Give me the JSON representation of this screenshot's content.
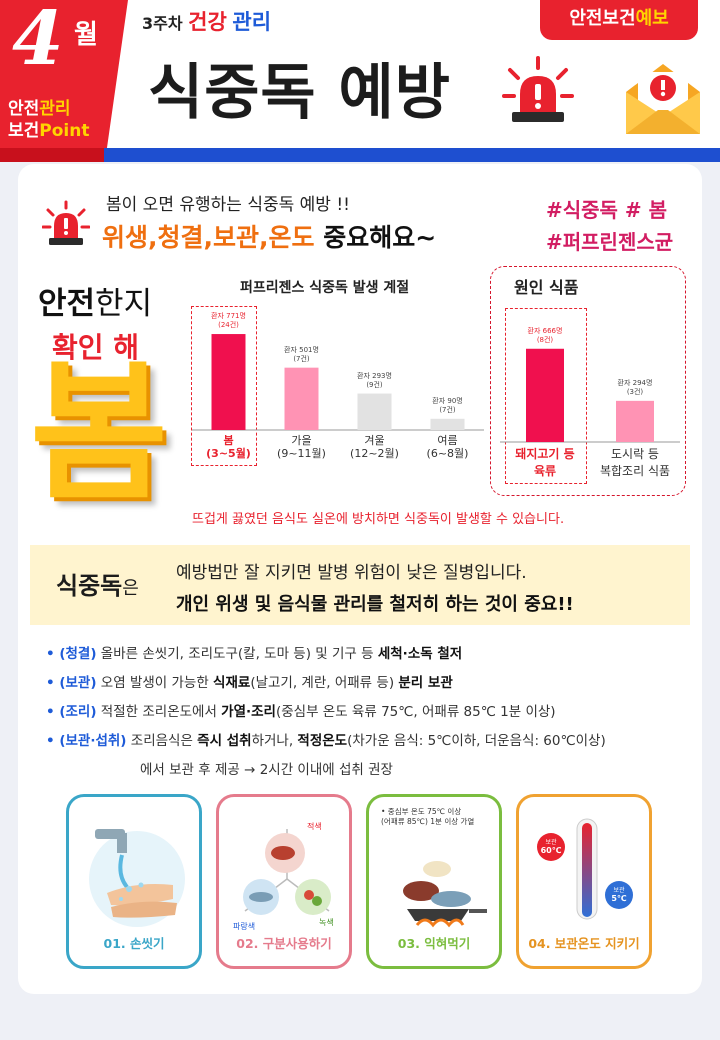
{
  "header": {
    "month_num": "4",
    "month_unit": "월",
    "point_pre": "안전",
    "point_accent1": "관리",
    "point_pre2": "보건",
    "point_accent2": "Point",
    "week": "3주차",
    "week_topic_1": "건강",
    "week_topic_2": "관리",
    "title": "식중독 예방",
    "badge_pre": "안전보건",
    "badge_accent": "예보"
  },
  "intro": {
    "line": "봄이 오면 유행하는 식중독 예방 !!",
    "headline_orange": "위생,청결,보관,온도 ",
    "headline_black": "중요해요~"
  },
  "hashtags": [
    "#식중독 # 봄",
    "#퍼프린젠스균"
  ],
  "slogan": {
    "bold": "안전",
    "normal": "한지",
    "line2": "확인 해",
    "big": "봄"
  },
  "season_chart": {
    "title": "퍼프리젠스 식중독 발생 계절"
  },
  "cause_chart": {
    "title": "원인 식품"
  },
  "chart_data": [
    {
      "type": "bar",
      "title": "퍼프리젠스 식중독 발생 계절",
      "categories": [
        {
          "name": "봄",
          "range": "(3~5월)"
        },
        {
          "name": "가을",
          "range": "(9~11월)"
        },
        {
          "name": "겨울",
          "range": "(12~2월)"
        },
        {
          "name": "여름",
          "range": "(6~8월)"
        }
      ],
      "values": [
        771,
        501,
        293,
        90
      ],
      "notes": [
        [
          "환자 771명",
          "(24건)"
        ],
        [
          "환자 501명",
          "(7건)"
        ],
        [
          "환자 293명",
          "(9건)"
        ],
        [
          "환자 90명",
          "(7건)"
        ]
      ],
      "colors": [
        "#f0104e",
        "#ff93b4",
        "#e2e2e2",
        "#e2e2e2"
      ],
      "ylim": [
        0,
        900
      ],
      "highlight_index": 0
    },
    {
      "type": "bar",
      "title": "원인 식품",
      "categories": [
        {
          "name": "돼지고기 등",
          "range": "육류"
        },
        {
          "name": "도시락 등",
          "range": "복합조리 식품"
        }
      ],
      "values": [
        666,
        294
      ],
      "notes": [
        [
          "환자 666명",
          "(8건)"
        ],
        [
          "환자 294명",
          "(3건)"
        ]
      ],
      "colors": [
        "#f0104e",
        "#ff93b4"
      ],
      "ylim": [
        0,
        800
      ],
      "highlight_index": 0
    }
  ],
  "warning": "뜨겁게 끓였던 음식도 실온에 방치하면 식중독이 발생할 수 있습니다.",
  "band": {
    "left_big": "식중독",
    "left_small": "은",
    "line1": "예방법만 잘 지키면 발병 위험이 낮은 질병입니다.",
    "line2": "개인 위생 및 음식물 관리를 철저히 하는 것이 중요!!"
  },
  "rules": [
    {
      "tag": "• (청결)",
      "a": " 올바른 손씻기, 조리도구(칼, 도마 등) 및 기구 등 ",
      "b": "세척·소독 철저",
      "c": ""
    },
    {
      "tag": "• (보관)",
      "a": " 오염 발생이 가능한 ",
      "b": "식재료",
      "c": "(날고기, 계란, 어패류 등) ",
      "d": "분리 보관"
    },
    {
      "tag": "• (조리)",
      "a": " 적절한 조리온도에서 ",
      "b": "가열·조리",
      "c": "(중심부 온도 육류 75℃, 어패류 85℃ 1분 이상)"
    },
    {
      "tag": "• (보관·섭취)",
      "a": " 조리음식은 ",
      "b": "즉시 섭취",
      "c": "하거나, ",
      "d": "적정온도",
      "e": "(차가운 음식: 5℃이하, 더운음식: 60℃이상)"
    }
  ],
  "rule_cont": "에서 보관 후 제공 → 2시간 이내에 섭취 권장",
  "cards": [
    {
      "label": "01. 손씻기",
      "color": "#3aa6c8"
    },
    {
      "label": "02. 구분사용하기",
      "color": "#e57b8c",
      "tag_top": "적색",
      "tag_left": "파랑색",
      "tag_right": "녹색"
    },
    {
      "label": "03. 익혀먹기",
      "color": "#7bbd3f",
      "note1": "• 중심부 온도 75℃ 이상",
      "note2": "(어패류 85℃) 1분 이상 가열"
    },
    {
      "label": "04. 보관온도 지키기",
      "color": "#f0a231",
      "hot": "60℃",
      "hot_pre": "보관",
      "cold": "5℃",
      "cold_pre": "보관"
    }
  ]
}
